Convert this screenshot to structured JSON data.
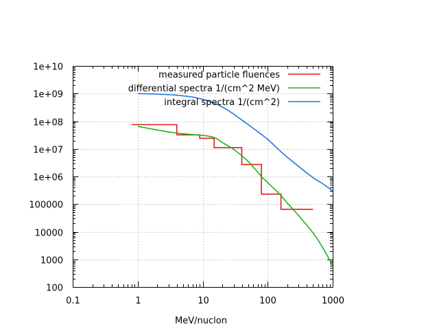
{
  "chart_data": {
    "type": "line",
    "xlabel": "MeV/nuclon",
    "ylabel": "",
    "title": "",
    "xscale": "log",
    "yscale": "log",
    "xlim": [
      0.1,
      1000
    ],
    "ylim": [
      100,
      10000000000
    ],
    "grid": true,
    "legend_position": "top-right",
    "x_tick_labels": [
      "0.1",
      "1",
      "10",
      "100",
      "1000"
    ],
    "x_tick_values": [
      0.1,
      1,
      10,
      100,
      1000
    ],
    "y_tick_labels": [
      "100",
      "1000",
      "10000",
      "100000",
      "1e+06",
      "1e+07",
      "1e+08",
      "1e+09",
      "1e+10"
    ],
    "y_tick_values": [
      100,
      1000,
      10000,
      100000,
      1000000,
      10000000,
      100000000,
      1000000000,
      10000000000
    ],
    "series": [
      {
        "name": "measured particle fluences",
        "color": "#e41a1c",
        "style": "steps",
        "points": [
          [
            0.8,
            75000000
          ],
          [
            4,
            75000000
          ],
          [
            4,
            32000000
          ],
          [
            9,
            32000000
          ],
          [
            9,
            24000000
          ],
          [
            15,
            24000000
          ],
          [
            15,
            11000000
          ],
          [
            40,
            11000000
          ],
          [
            40,
            2700000
          ],
          [
            80,
            2700000
          ],
          [
            80,
            230000
          ],
          [
            160,
            230000
          ],
          [
            160,
            65000
          ],
          [
            500,
            65000
          ]
        ]
      },
      {
        "name": "differential spectra 1/(cm^2 MeV)",
        "color": "#1fb21f",
        "style": "line",
        "points": [
          [
            1,
            65000000
          ],
          [
            2,
            48000000
          ],
          [
            4,
            37000000
          ],
          [
            8,
            32000000
          ],
          [
            12,
            29000000
          ],
          [
            16,
            24000000
          ],
          [
            20,
            17000000
          ],
          [
            30,
            9500000
          ],
          [
            50,
            3500000
          ],
          [
            80,
            1000000
          ],
          [
            100,
            600000
          ],
          [
            150,
            240000
          ],
          [
            200,
            110000
          ],
          [
            300,
            38000
          ],
          [
            500,
            9000
          ],
          [
            700,
            2700
          ],
          [
            1000,
            600
          ]
        ]
      },
      {
        "name": "integral spectra 1/(cm^2)",
        "color": "#1d76d8",
        "style": "line",
        "points": [
          [
            1,
            1000000000
          ],
          [
            2,
            950000000
          ],
          [
            4,
            870000000
          ],
          [
            8,
            700000000
          ],
          [
            15,
            450000000
          ],
          [
            25,
            240000000
          ],
          [
            40,
            110000000
          ],
          [
            60,
            55000000
          ],
          [
            100,
            22000000
          ],
          [
            150,
            9000000
          ],
          [
            200,
            5000000
          ],
          [
            300,
            2300000
          ],
          [
            500,
            900000
          ],
          [
            700,
            550000
          ],
          [
            1000,
            300000
          ]
        ]
      }
    ]
  }
}
